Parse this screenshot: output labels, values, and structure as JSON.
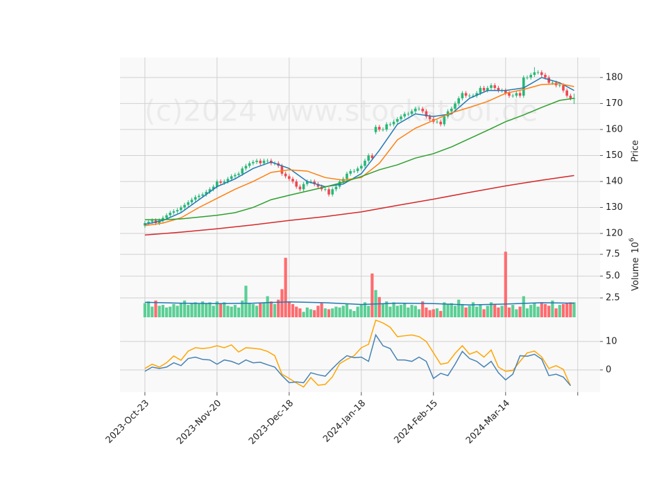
{
  "chart_data": [
    {
      "type": "candlestick",
      "watermark": "(c)2024 www.stockstool.de",
      "ylabel": "Price",
      "up_color": "#26b877",
      "down_color": "#f0474f",
      "xlim": [
        -6.9,
        126.2
      ],
      "ylim": [
        116,
        187.7
      ],
      "yticks": [
        120,
        130,
        140,
        150,
        160,
        170,
        180
      ],
      "grid": true,
      "open": [
        123,
        124,
        124.5,
        125,
        124,
        125,
        126,
        127,
        128,
        128.5,
        129,
        130,
        131,
        132,
        133,
        134,
        134.5,
        135,
        136,
        137,
        138,
        140,
        139.5,
        140,
        141,
        142,
        142.5,
        143,
        145,
        146,
        147,
        147.5,
        148,
        147,
        148,
        148,
        147,
        147,
        146,
        143,
        142,
        141,
        140,
        138,
        137,
        139,
        140,
        140,
        139,
        138,
        137,
        137,
        135,
        137,
        138,
        140,
        141,
        143,
        144,
        144,
        145,
        146,
        148,
        150,
        159,
        161,
        160,
        160,
        162,
        162,
        163,
        164,
        165,
        166,
        166,
        167,
        168,
        168,
        167,
        165,
        164,
        163,
        163,
        162,
        165,
        167,
        168,
        170,
        172,
        174,
        173,
        173,
        173,
        174,
        176,
        175,
        176,
        177,
        176,
        175,
        175,
        174,
        173,
        173,
        174,
        173,
        180,
        180,
        181,
        182,
        182,
        181,
        180,
        178,
        178,
        177,
        177,
        175,
        173,
        172
      ],
      "high": [
        124.8,
        125.3,
        125.8,
        125.8,
        125.8,
        126.8,
        127.8,
        128.8,
        129.3,
        129.8,
        130.8,
        131.8,
        132.8,
        133.8,
        134.8,
        135.3,
        135.8,
        136.8,
        137.8,
        138.8,
        140.8,
        140.8,
        140.8,
        141.8,
        142.8,
        143.3,
        143.8,
        145.8,
        146.8,
        147.8,
        148.3,
        148.8,
        148.8,
        148.8,
        148.8,
        148.8,
        147.8,
        147.8,
        146.8,
        143.8,
        142.8,
        141.8,
        140.8,
        138.8,
        139.8,
        140.8,
        140.8,
        140.8,
        139.8,
        138.8,
        137.8,
        137.8,
        137.8,
        138.8,
        140.8,
        141.8,
        143.8,
        144.8,
        144.8,
        145.8,
        146.8,
        148.8,
        150.8,
        150.8,
        161.8,
        161.8,
        160.8,
        162.8,
        162.8,
        163.8,
        164.8,
        165.8,
        166.8,
        166.8,
        167.8,
        168.8,
        168.8,
        168.8,
        167.8,
        165.8,
        164.8,
        163.8,
        163.8,
        165.8,
        167.8,
        168.8,
        170.8,
        172.8,
        174.8,
        174.8,
        173.8,
        173.8,
        174.8,
        176.8,
        176.8,
        176.8,
        177.8,
        177.8,
        176.8,
        175.8,
        175.8,
        174.8,
        173.8,
        174.8,
        174.8,
        180.8,
        180.8,
        181.8,
        184,
        182.8,
        182.8,
        181.8,
        180.8,
        178.8,
        178.8,
        177.8,
        177.8,
        175.8,
        173.8,
        173.8
      ],
      "low": [
        122.2,
        123.2,
        123.7,
        123.2,
        123.2,
        124.2,
        125.2,
        126.2,
        127.2,
        127.7,
        128.2,
        129.2,
        130.2,
        131.2,
        132.2,
        133.2,
        133.7,
        134.2,
        135.2,
        136.2,
        137.2,
        138.7,
        138.7,
        139.2,
        140.2,
        141.2,
        141.7,
        142.2,
        144.2,
        145.2,
        146.2,
        146.7,
        146.2,
        146.2,
        147.2,
        146.2,
        146.2,
        145.2,
        142.2,
        141.2,
        140.2,
        139.2,
        137.2,
        136.2,
        136.2,
        138.2,
        139.2,
        138.2,
        137.2,
        136.2,
        136.2,
        134.2,
        134.2,
        136.2,
        137.2,
        139.2,
        140.2,
        142.2,
        143.2,
        143.2,
        144.2,
        145.2,
        147.2,
        148.2,
        158.2,
        159.2,
        159.2,
        159.2,
        161.2,
        161.2,
        162.2,
        163.2,
        164.2,
        165.2,
        165.2,
        166.2,
        167.2,
        166.2,
        164.2,
        163.2,
        162.2,
        162.2,
        161.2,
        161.2,
        164.2,
        166.2,
        167.2,
        169.2,
        171.2,
        172.2,
        172.2,
        172.2,
        172.2,
        173.2,
        174.2,
        174.2,
        175.2,
        175.2,
        174.2,
        174.2,
        173.2,
        172.2,
        172.2,
        172.2,
        172.2,
        172.2,
        179.2,
        179.2,
        180.2,
        181.2,
        180.2,
        179.2,
        177.2,
        177.2,
        176.2,
        176.2,
        174.2,
        172.2,
        171.2,
        169.8
      ],
      "close": [
        124,
        124.5,
        125,
        124,
        125,
        126,
        127,
        128,
        128.5,
        129,
        130,
        131,
        132,
        133,
        134,
        134.5,
        135,
        136,
        137,
        138,
        140,
        139.5,
        140,
        141,
        142,
        142.5,
        143,
        145,
        146,
        147,
        147.5,
        148,
        147,
        148,
        148,
        147,
        147,
        146,
        143,
        142,
        141,
        140,
        138,
        137,
        139,
        140,
        140,
        139,
        138,
        137,
        137,
        135,
        137,
        138,
        140,
        141,
        143,
        144,
        144,
        145,
        146,
        148,
        150,
        149,
        161,
        160,
        160,
        162,
        162,
        163,
        164,
        165,
        166,
        166,
        167,
        168,
        168,
        167,
        165,
        164,
        163,
        163,
        162,
        165,
        167,
        168,
        170,
        172,
        174,
        173,
        173,
        173,
        174,
        176,
        175,
        176,
        177,
        176,
        175,
        175,
        174,
        173,
        173,
        174,
        173,
        180,
        180,
        181,
        182,
        182,
        181,
        180,
        178,
        178,
        177,
        177,
        175,
        173,
        172,
        172
      ],
      "series": [
        {
          "color": "#1f77b4",
          "x": [
            0,
            5,
            10,
            15,
            20,
            25,
            30,
            35,
            40,
            45,
            50,
            55,
            60,
            65,
            70,
            75,
            80,
            85,
            90,
            95,
            100,
            105,
            110,
            115,
            119
          ],
          "values": [
            123.5,
            125,
            128,
            133,
            138,
            141,
            145,
            147.5,
            145,
            140,
            138,
            139,
            143,
            152,
            162,
            166,
            165,
            166,
            172,
            175,
            175,
            176,
            180,
            178,
            175
          ]
        },
        {
          "color": "#ff7f0e",
          "x": [
            0,
            5,
            10,
            15,
            20,
            25,
            30,
            35,
            40,
            45,
            50,
            55,
            60,
            65,
            70,
            75,
            80,
            85,
            90,
            95,
            100,
            105,
            110,
            115,
            119
          ],
          "values": [
            123,
            124,
            126,
            130,
            133.5,
            137,
            140,
            143.5,
            144.5,
            144,
            141.5,
            140.5,
            141.5,
            147,
            156,
            160.5,
            163.5,
            166.4,
            168.5,
            170.8,
            173.9,
            175.4,
            177.3,
            177.6,
            176.5
          ]
        },
        {
          "color": "#2ca02c",
          "x": [
            0,
            5,
            10,
            15,
            20,
            25,
            30,
            35,
            40,
            45,
            50,
            55,
            60,
            65,
            70,
            75,
            80,
            85,
            90,
            95,
            100,
            105,
            110,
            115,
            119
          ],
          "values": [
            125.3,
            125.3,
            125.6,
            126.3,
            127,
            128,
            130,
            133,
            134.7,
            136.3,
            137.9,
            139.7,
            141.9,
            144.5,
            146.4,
            149,
            150.7,
            153.3,
            156.5,
            159.7,
            163,
            165.6,
            168.5,
            171.2,
            172
          ]
        },
        {
          "color": "#d62728",
          "x": [
            0,
            10,
            20,
            30,
            40,
            50,
            60,
            70,
            80,
            90,
            100,
            110,
            119
          ],
          "values": [
            119.4,
            120.5,
            121.8,
            123.3,
            125,
            126.5,
            128.3,
            130.8,
            133.2,
            135.8,
            138.3,
            140.5,
            142.3
          ]
        }
      ]
    },
    {
      "type": "bar",
      "ylabel": "Volume",
      "unit_base": "10",
      "unit_exponent": "6",
      "up_color": "#5bcf95",
      "down_color": "#ff6b6e",
      "xlim": [
        -6.9,
        126.2
      ],
      "ylim": [
        0.28,
        8.7
      ],
      "yticks": [
        2.5,
        {
          "value": 5.0,
          "label": "5.0"
        },
        7.5
      ],
      "grid": true,
      "values": [
        1.9,
        2.1,
        1.5,
        2.2,
        1.6,
        1.7,
        1.4,
        1.5,
        1.8,
        1.6,
        1.9,
        2.2,
        1.7,
        1.9,
        2.0,
        1.8,
        2.1,
        1.9,
        2.0,
        1.6,
        2.1,
        1.9,
        2.0,
        1.6,
        1.5,
        1.7,
        1.4,
        2.2,
        3.9,
        1.9,
        1.8,
        1.6,
        1.9,
        2.0,
        2.7,
        2.1,
        1.8,
        2.3,
        3.5,
        7.1,
        2.1,
        1.8,
        1.5,
        1.3,
        0.9,
        1.4,
        1.2,
        1.1,
        1.6,
        1.9,
        1.3,
        1.2,
        1.3,
        1.5,
        1.4,
        1.6,
        1.8,
        1.2,
        1.0,
        1.5,
        1.7,
        2.0,
        1.6,
        5.3,
        3.4,
        2.6,
        1.8,
        2.1,
        1.5,
        2.0,
        1.6,
        1.7,
        1.9,
        1.4,
        1.7,
        1.6,
        1.2,
        2.1,
        1.4,
        1.1,
        1.2,
        1.3,
        1.0,
        2.0,
        1.8,
        1.9,
        1.6,
        2.3,
        1.8,
        1.4,
        1.6,
        2.0,
        1.5,
        1.7,
        1.2,
        1.6,
        2.0,
        1.8,
        1.4,
        1.6,
        7.8,
        1.4,
        1.7,
        1.2,
        1.5,
        2.7,
        1.3,
        1.7,
        1.9,
        1.5,
        2.0,
        1.8,
        1.6,
        2.2,
        1.3,
        1.7,
        1.8,
        1.9,
        2.0,
        2.0
      ],
      "series": [
        {
          "color": "#1f77b4",
          "x": [
            0,
            10,
            20,
            30,
            40,
            50,
            60,
            70,
            80,
            90,
            100,
            110,
            119
          ],
          "values": [
            2.0,
            1.9,
            1.85,
            1.9,
            2.05,
            1.95,
            1.75,
            1.9,
            1.85,
            1.7,
            1.8,
            1.95,
            1.9
          ]
        }
      ]
    },
    {
      "type": "line",
      "xlim": [
        -6.9,
        126.2
      ],
      "ylim": [
        -7.8,
        18.5
      ],
      "yticks": [
        0,
        10
      ],
      "grid": true,
      "xticks": [
        {
          "value": 0,
          "label": "2023-Oct-23"
        },
        {
          "value": 20,
          "label": "2023-Nov-20"
        },
        {
          "value": 40,
          "label": "2023-Dec-18"
        },
        {
          "value": 60,
          "label": "2024-Jan-18"
        },
        {
          "value": 80,
          "label": "2024-Feb-15"
        },
        {
          "value": 100,
          "label": "2024-Mar-14"
        },
        {
          "value": 120,
          "label": ""
        }
      ],
      "series": [
        {
          "color": "#ffa500",
          "x": [
            0,
            2,
            4,
            6,
            8,
            10,
            12,
            14,
            16,
            18,
            20,
            22,
            24,
            26,
            28,
            30,
            32,
            34,
            36,
            38,
            40,
            42,
            44,
            46,
            48,
            50,
            52,
            54,
            56,
            58,
            60,
            62,
            64,
            66,
            68,
            70,
            72,
            74,
            76,
            78,
            80,
            82,
            84,
            86,
            88,
            90,
            92,
            94,
            96,
            98,
            100,
            102,
            104,
            106,
            108,
            110,
            112,
            114,
            116,
            118
          ],
          "values": [
            0.5,
            2,
            1,
            2.5,
            4.9,
            3.4,
            6.6,
            7.8,
            7.5,
            7.8,
            8.5,
            7.8,
            8.8,
            6.3,
            7.8,
            7.6,
            7.3,
            6.5,
            5,
            -1.5,
            -3,
            -4.6,
            -6,
            -2.7,
            -5.4,
            -5.1,
            -2.4,
            2.2,
            3.7,
            5,
            7.8,
            9,
            17.5,
            16.5,
            15,
            11.7,
            12,
            12.3,
            11.7,
            10,
            6,
            2,
            2.5,
            5.8,
            8.5,
            5.5,
            6.5,
            4.5,
            7,
            1,
            -0.5,
            -0.2,
            3,
            6,
            6.6,
            4.6,
            0.5,
            1.5,
            0.2,
            -5.6
          ]
        },
        {
          "color": "#4682b4",
          "x": [
            0,
            2,
            4,
            6,
            8,
            10,
            12,
            14,
            16,
            18,
            20,
            22,
            24,
            26,
            28,
            30,
            32,
            34,
            36,
            38,
            40,
            42,
            44,
            46,
            48,
            50,
            52,
            54,
            56,
            58,
            60,
            62,
            64,
            66,
            68,
            70,
            72,
            74,
            76,
            78,
            80,
            82,
            84,
            86,
            88,
            90,
            92,
            94,
            96,
            98,
            100,
            102,
            104,
            106,
            108,
            110,
            112,
            114,
            116,
            118
          ],
          "values": [
            -0.5,
            1,
            0.5,
            1,
            2.5,
            1.5,
            4,
            4.5,
            3.7,
            3.5,
            2,
            3.5,
            3,
            2,
            3.5,
            2.5,
            2.7,
            1.8,
            1,
            -2,
            -4.5,
            -4.2,
            -4.5,
            -1,
            -1.7,
            -2.2,
            0.5,
            3,
            5,
            4.3,
            4.5,
            3,
            12.3,
            8.5,
            7.5,
            3.5,
            3.5,
            3,
            4.5,
            3,
            -3,
            -1.2,
            -2,
            2,
            6.5,
            4,
            3,
            1,
            3,
            -1,
            -3.5,
            -1.5,
            5,
            4.8,
            5.5,
            3.8,
            -2,
            -1.5,
            -2.5,
            -5.5
          ]
        }
      ]
    }
  ]
}
